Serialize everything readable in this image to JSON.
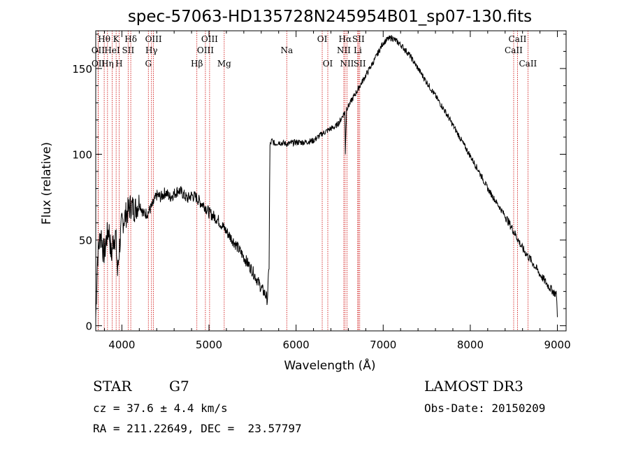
{
  "chart_data": {
    "type": "line",
    "title": "spec-57063-HD135728N245954B01_sp07-130.fits",
    "xlabel": "Wavelength (Å)",
    "ylabel": "Flux (relative)",
    "xlim": [
      3700,
      9100
    ],
    "ylim": [
      -3,
      172
    ],
    "x_ticks": [
      4000,
      5000,
      6000,
      7000,
      8000,
      9000
    ],
    "y_ticks": [
      0,
      50,
      100,
      150
    ],
    "x_tick_labels": [
      "4000",
      "5000",
      "6000",
      "7000",
      "8000",
      "9000"
    ],
    "y_tick_labels": [
      "0",
      "50",
      "100",
      "150"
    ],
    "line_color": "#000000",
    "marker_color": "#cc0000",
    "series": [
      {
        "name": "flux",
        "x": [
          3700,
          3720,
          3740,
          3760,
          3780,
          3800,
          3820,
          3850,
          3880,
          3900,
          3930,
          3950,
          3970,
          4000,
          4050,
          4100,
          4150,
          4200,
          4250,
          4300,
          4350,
          4400,
          4450,
          4500,
          4550,
          4600,
          4650,
          4700,
          4750,
          4800,
          4850,
          4900,
          4950,
          5000,
          5050,
          5100,
          5200,
          5300,
          5400,
          5500,
          5600,
          5650,
          5670,
          5690,
          5700,
          5720,
          5760,
          5800,
          5900,
          6000,
          6100,
          6200,
          6300,
          6400,
          6450,
          6500,
          6540,
          6560,
          6565,
          6580,
          6600,
          6700,
          6800,
          6900,
          6950,
          7000,
          7050,
          7100,
          7150,
          7200,
          7300,
          7400,
          7500,
          7600,
          7700,
          7800,
          7900,
          8000,
          8100,
          8200,
          8300,
          8400,
          8500,
          8600,
          8700,
          8800,
          8900,
          8950,
          8990,
          9000
        ],
        "y": [
          5,
          40,
          48,
          55,
          45,
          42,
          50,
          57,
          40,
          50,
          53,
          30,
          45,
          60,
          65,
          70,
          68,
          72,
          65,
          66,
          70,
          76,
          75,
          78,
          75,
          77,
          79,
          77,
          74,
          76,
          75,
          72,
          70,
          66,
          64,
          62,
          55,
          48,
          40,
          32,
          22,
          18,
          15,
          35,
          105,
          108,
          106,
          107,
          106,
          107,
          107,
          108,
          112,
          115,
          116,
          119,
          123,
          125,
          100,
          127,
          128,
          137,
          146,
          155,
          160,
          165,
          167,
          168,
          166,
          164,
          158,
          150,
          142,
          134,
          126,
          117,
          108,
          99,
          90,
          80,
          72,
          64,
          55,
          45,
          38,
          30,
          23,
          20,
          18,
          5
        ]
      }
    ],
    "spectral_lines": [
      {
        "label": "Hθ",
        "wavelength": 3797,
        "row": 1
      },
      {
        "label": "K",
        "wavelength": 3934,
        "row": 1
      },
      {
        "label": "Hδ",
        "wavelength": 4102,
        "row": 1
      },
      {
        "label": "OIII",
        "wavelength": 4363,
        "row": 1
      },
      {
        "label": "OIII",
        "wavelength": 5007,
        "row": 1
      },
      {
        "label": "OI",
        "wavelength": 6300,
        "row": 1
      },
      {
        "label": "Hα",
        "wavelength": 6563,
        "row": 1
      },
      {
        "label": "SII",
        "wavelength": 6716,
        "row": 1
      },
      {
        "label": "CaII",
        "wavelength": 8542,
        "row": 1
      },
      {
        "label": "OII",
        "wavelength": 3727,
        "row": 2
      },
      {
        "label": "HeI",
        "wavelength": 3889,
        "row": 2
      },
      {
        "label": "SII",
        "wavelength": 4072,
        "row": 2
      },
      {
        "label": "Hγ",
        "wavelength": 4340,
        "row": 2
      },
      {
        "label": "OIII",
        "wavelength": 4959,
        "row": 2
      },
      {
        "label": "NII",
        "wavelength": 6548,
        "row": 2
      },
      {
        "label": "Li",
        "wavelength": 6708,
        "row": 2
      },
      {
        "label": "CaII",
        "wavelength": 8498,
        "row": 2
      },
      {
        "label": "OII",
        "wavelength": 3729,
        "row": 3
      },
      {
        "label": "Hη",
        "wavelength": 3835,
        "row": 3
      },
      {
        "label": "H",
        "wavelength": 3968,
        "row": 3
      },
      {
        "label": "G",
        "wavelength": 4304,
        "row": 3
      },
      {
        "label": "Hβ",
        "wavelength": 4861,
        "row": 3
      },
      {
        "label": "Mg",
        "wavelength": 5175,
        "row": 3
      },
      {
        "label": "Na",
        "wavelength": 5893,
        "row": 2
      },
      {
        "label": "OI",
        "wavelength": 6364,
        "row": 3
      },
      {
        "label": "NII",
        "wavelength": 6584,
        "row": 3
      },
      {
        "label": "SII",
        "wavelength": 6731,
        "row": 3
      },
      {
        "label": "CaII",
        "wavelength": 8662,
        "row": 3
      }
    ]
  },
  "info": {
    "object_class": "STAR",
    "subclass": "G7",
    "survey": "LAMOST DR3",
    "redshift": "cz = 37.6 ± 4.4 km/s",
    "obs_date": "Obs-Date: 20150209",
    "coords": "RA = 211.22649, DEC =  23.57797"
  }
}
